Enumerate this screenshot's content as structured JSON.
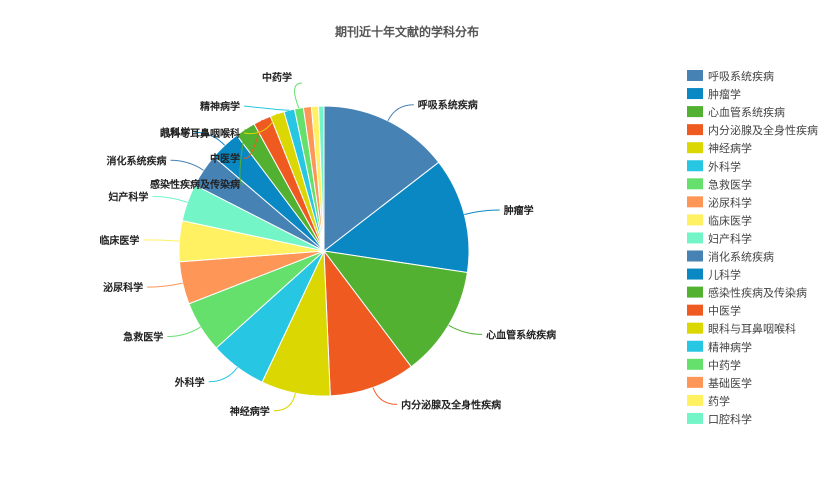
{
  "chart_data": {
    "type": "pie",
    "title": "期刊近十年文献的学科分布",
    "legend_position": "right",
    "slices": [
      {
        "name": "呼吸系统疾病",
        "value": 14.7,
        "color": "#4682b4"
      },
      {
        "name": "肿瘤学",
        "value": 13.0,
        "color": "#0a88c3"
      },
      {
        "name": "心血管系统疾病",
        "value": 12.5,
        "color": "#52b131"
      },
      {
        "name": "内分泌腺及全身性疾病",
        "value": 9.7,
        "color": "#ef5a21"
      },
      {
        "name": "神经病学",
        "value": 7.8,
        "color": "#dbd702"
      },
      {
        "name": "外科学",
        "value": 6.4,
        "color": "#27c6e2"
      },
      {
        "name": "急救医学",
        "value": 5.8,
        "color": "#66e06c"
      },
      {
        "name": "泌尿科学",
        "value": 4.8,
        "color": "#fe9657"
      },
      {
        "name": "临床医学",
        "value": 4.6,
        "color": "#fff162"
      },
      {
        "name": "妇产科学",
        "value": 4.2,
        "color": "#74f5c7"
      },
      {
        "name": "消化系统疾病",
        "value": 3.8,
        "color": "#4682b4"
      },
      {
        "name": "儿科学",
        "value": 3.5,
        "color": "#0a88c3"
      },
      {
        "name": "感染性疾病及传染病",
        "value": 2.3,
        "color": "#52b131"
      },
      {
        "name": "中医学",
        "value": 2.0,
        "color": "#ef5a21"
      },
      {
        "name": "眼科与耳鼻咽喉科",
        "value": 1.6,
        "color": "#dbd702"
      },
      {
        "name": "精神病学",
        "value": 1.2,
        "color": "#27c6e2"
      },
      {
        "name": "中药学",
        "value": 1.0,
        "color": "#66e06c"
      },
      {
        "name": "基础医学",
        "value": 0.9,
        "color": "#fe9657"
      },
      {
        "name": "药学",
        "value": 0.8,
        "color": "#fff162"
      },
      {
        "name": "口腔科学",
        "value": 0.6,
        "color": "#74f5c7"
      }
    ]
  }
}
